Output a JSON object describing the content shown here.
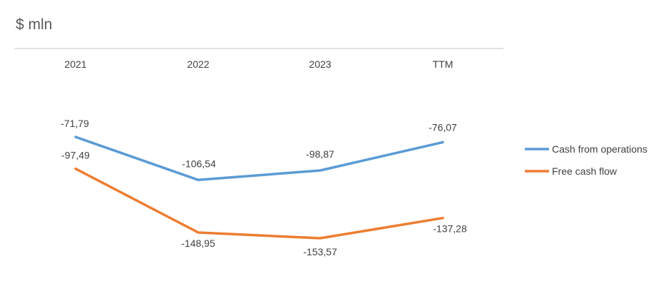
{
  "chart_data": {
    "type": "line",
    "title": "$ mln",
    "categories": [
      "2021",
      "2022",
      "2023",
      "TTM"
    ],
    "series": [
      {
        "name": "Cash from operations",
        "color": "#5b9bd5",
        "values": [
          -71.79,
          -106.54,
          -98.87,
          -76.07
        ],
        "labels": [
          "-71,79",
          "-106,54",
          "-98,87",
          "-76,07"
        ]
      },
      {
        "name": "Free cash flow",
        "color": "#ed7d31",
        "values": [
          -97.49,
          -148.95,
          -153.57,
          -137.28
        ],
        "labels": [
          "-97,49",
          "-148,95",
          "-153,57",
          "-137,28"
        ]
      }
    ],
    "x_axis_position": "top",
    "grid": false,
    "legend_position": "right"
  }
}
